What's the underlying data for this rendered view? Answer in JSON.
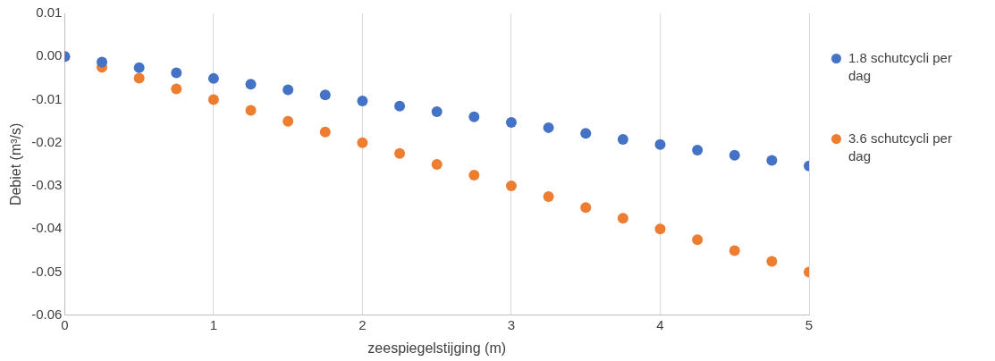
{
  "chart_data": {
    "type": "scatter",
    "xlabel": "zeespiegelstijging (m)",
    "ylabel": "Debiet (m³/s)",
    "x": [
      0,
      0.25,
      0.5,
      0.75,
      1,
      1.25,
      1.5,
      1.75,
      2,
      2.25,
      2.5,
      2.75,
      3,
      3.25,
      3.5,
      3.75,
      4,
      4.25,
      4.5,
      4.75,
      5
    ],
    "series": [
      {
        "name": "1.8 schutcycli per dag",
        "color": "#4472c4",
        "values": [
          0,
          -0.0013,
          -0.0026,
          -0.0038,
          -0.0051,
          -0.0064,
          -0.0077,
          -0.0089,
          -0.0103,
          -0.0115,
          -0.0128,
          -0.014,
          -0.0153,
          -0.0165,
          -0.0178,
          -0.0192,
          -0.0204,
          -0.0217,
          -0.0229,
          -0.0241,
          -0.0254
        ]
      },
      {
        "name": "3.6 schutcycli per dag",
        "color": "#ed7d31",
        "values": [
          0,
          -0.0025,
          -0.005,
          -0.0075,
          -0.01,
          -0.0125,
          -0.015,
          -0.0175,
          -0.02,
          -0.0225,
          -0.025,
          -0.0275,
          -0.03,
          -0.0325,
          -0.035,
          -0.0375,
          -0.04,
          -0.0425,
          -0.045,
          -0.0475,
          -0.05
        ]
      }
    ],
    "xlim": [
      0,
      5
    ],
    "xticks": [
      0,
      1,
      2,
      3,
      4,
      5
    ],
    "ylim": [
      -0.06,
      0.01
    ],
    "yticks": [
      -0.06,
      -0.05,
      -0.04,
      -0.03,
      -0.02,
      -0.01,
      {
        "value": 0,
        "label": "0.00"
      },
      0.01
    ],
    "grid": "x",
    "legend": "right",
    "marker": "circle"
  }
}
